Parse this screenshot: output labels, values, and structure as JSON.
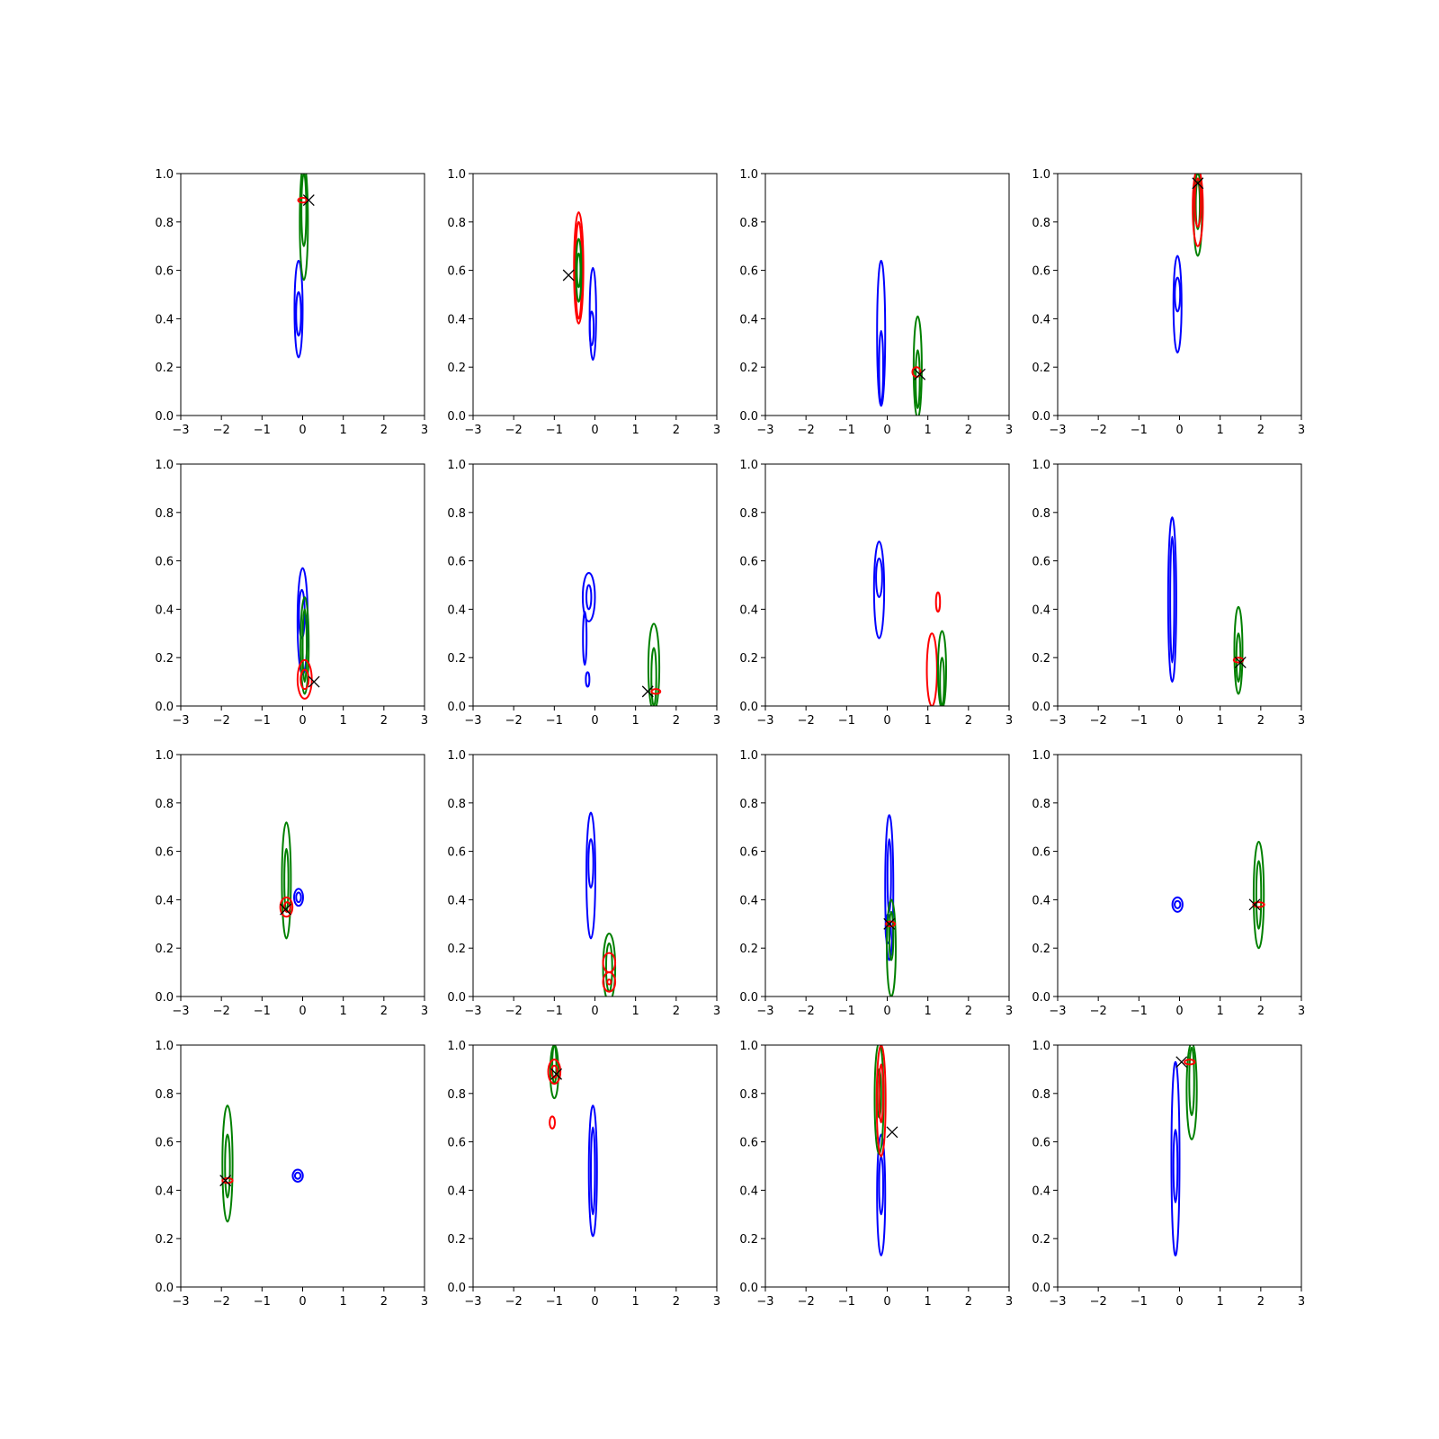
{
  "colors": {
    "blue": "#0000ff",
    "green": "#008000",
    "red": "#ff0000",
    "marker": "#000000"
  },
  "chart_data": {
    "type": "contour-grid",
    "layout": {
      "rows": 4,
      "cols": 4
    },
    "xlim": [
      -3,
      3
    ],
    "ylim": [
      0,
      1
    ],
    "xticks": [
      -3,
      -2,
      -1,
      0,
      1,
      2,
      3
    ],
    "yticks": [
      0.0,
      0.2,
      0.4,
      0.6,
      0.8,
      1.0
    ],
    "xtick_labels": [
      "−3",
      "−2",
      "−1",
      "0",
      "1",
      "2",
      "3"
    ],
    "ytick_labels": [
      "0.0",
      "0.2",
      "0.4",
      "0.6",
      "0.8",
      "1.0"
    ],
    "panels": [
      {
        "marker": [
          0.15,
          0.89
        ],
        "contours": [
          {
            "c": "blue",
            "x": -0.1,
            "y": 0.44,
            "rx": 0.2,
            "ry": 0.2
          },
          {
            "c": "blue",
            "x": -0.1,
            "y": 0.42,
            "rx": 0.12,
            "ry": 0.09
          },
          {
            "c": "green",
            "x": 0.03,
            "y": 0.8,
            "rx": 0.2,
            "ry": 0.24
          },
          {
            "c": "green",
            "x": 0.03,
            "y": 0.85,
            "rx": 0.12,
            "ry": 0.15
          },
          {
            "c": "red",
            "x": 0.0,
            "y": 0.89,
            "rx": 0.22,
            "ry": 0.01
          }
        ]
      },
      {
        "marker": [
          -0.65,
          0.58
        ],
        "contours": [
          {
            "c": "blue",
            "x": -0.05,
            "y": 0.42,
            "rx": 0.16,
            "ry": 0.19
          },
          {
            "c": "blue",
            "x": -0.08,
            "y": 0.36,
            "rx": 0.1,
            "ry": 0.07
          },
          {
            "c": "red",
            "x": -0.4,
            "y": 0.61,
            "rx": 0.23,
            "ry": 0.23
          },
          {
            "c": "red",
            "x": -0.4,
            "y": 0.6,
            "rx": 0.16,
            "ry": 0.2
          },
          {
            "c": "green",
            "x": -0.4,
            "y": 0.6,
            "rx": 0.13,
            "ry": 0.13
          },
          {
            "c": "green",
            "x": -0.4,
            "y": 0.6,
            "rx": 0.07,
            "ry": 0.07
          }
        ]
      },
      {
        "marker": [
          0.8,
          0.17
        ],
        "contours": [
          {
            "c": "blue",
            "x": -0.15,
            "y": 0.34,
            "rx": 0.2,
            "ry": 0.3
          },
          {
            "c": "blue",
            "x": -0.15,
            "y": 0.2,
            "rx": 0.1,
            "ry": 0.15
          },
          {
            "c": "green",
            "x": 0.75,
            "y": 0.2,
            "rx": 0.2,
            "ry": 0.21
          },
          {
            "c": "green",
            "x": 0.75,
            "y": 0.15,
            "rx": 0.1,
            "ry": 0.12
          },
          {
            "c": "red",
            "x": 0.72,
            "y": 0.18,
            "rx": 0.2,
            "ry": 0.02
          }
        ]
      },
      {
        "marker": [
          0.45,
          0.96
        ],
        "contours": [
          {
            "c": "blue",
            "x": -0.05,
            "y": 0.46,
            "rx": 0.2,
            "ry": 0.2
          },
          {
            "c": "blue",
            "x": -0.05,
            "y": 0.5,
            "rx": 0.13,
            "ry": 0.07
          },
          {
            "c": "green",
            "x": 0.45,
            "y": 0.83,
            "rx": 0.2,
            "ry": 0.17
          },
          {
            "c": "green",
            "x": 0.45,
            "y": 0.87,
            "rx": 0.1,
            "ry": 0.1
          },
          {
            "c": "red",
            "x": 0.45,
            "y": 0.86,
            "rx": 0.25,
            "ry": 0.16
          },
          {
            "c": "red",
            "x": 0.45,
            "y": 0.88,
            "rx": 0.15,
            "ry": 0.1
          }
        ]
      },
      {
        "marker": [
          0.28,
          0.1
        ],
        "contours": [
          {
            "c": "blue",
            "x": 0.0,
            "y": 0.35,
            "rx": 0.25,
            "ry": 0.22
          },
          {
            "c": "blue",
            "x": -0.02,
            "y": 0.38,
            "rx": 0.14,
            "ry": 0.1
          },
          {
            "c": "green",
            "x": 0.05,
            "y": 0.25,
            "rx": 0.2,
            "ry": 0.2
          },
          {
            "c": "green",
            "x": 0.05,
            "y": 0.25,
            "rx": 0.1,
            "ry": 0.15
          },
          {
            "c": "red",
            "x": 0.05,
            "y": 0.11,
            "rx": 0.35,
            "ry": 0.08
          },
          {
            "c": "red",
            "x": 0.05,
            "y": 0.11,
            "rx": 0.2,
            "ry": 0.04
          }
        ]
      },
      {
        "marker": [
          1.3,
          0.06
        ],
        "contours": [
          {
            "c": "blue",
            "x": -0.15,
            "y": 0.45,
            "rx": 0.3,
            "ry": 0.1
          },
          {
            "c": "blue",
            "x": -0.15,
            "y": 0.45,
            "rx": 0.12,
            "ry": 0.05
          },
          {
            "c": "blue",
            "x": -0.25,
            "y": 0.28,
            "rx": 0.05,
            "ry": 0.11
          },
          {
            "c": "blue",
            "x": -0.18,
            "y": 0.11,
            "rx": 0.04,
            "ry": 0.03
          },
          {
            "c": "green",
            "x": 1.45,
            "y": 0.16,
            "rx": 0.27,
            "ry": 0.18
          },
          {
            "c": "green",
            "x": 1.45,
            "y": 0.12,
            "rx": 0.12,
            "ry": 0.12
          },
          {
            "c": "red",
            "x": 1.5,
            "y": 0.06,
            "rx": 0.22,
            "ry": 0.01
          }
        ]
      },
      {
        "marker": null,
        "contours": [
          {
            "c": "blue",
            "x": -0.2,
            "y": 0.48,
            "rx": 0.25,
            "ry": 0.2
          },
          {
            "c": "blue",
            "x": -0.2,
            "y": 0.53,
            "rx": 0.15,
            "ry": 0.08
          },
          {
            "c": "red",
            "x": 1.25,
            "y": 0.43,
            "rx": 0.1,
            "ry": 0.04
          },
          {
            "c": "red",
            "x": 1.1,
            "y": 0.15,
            "rx": 0.25,
            "ry": 0.15
          },
          {
            "c": "green",
            "x": 1.35,
            "y": 0.15,
            "rx": 0.2,
            "ry": 0.16
          },
          {
            "c": "green",
            "x": 1.35,
            "y": 0.1,
            "rx": 0.1,
            "ry": 0.1
          }
        ]
      },
      {
        "marker": [
          1.5,
          0.18
        ],
        "contours": [
          {
            "c": "blue",
            "x": -0.18,
            "y": 0.44,
            "rx": 0.2,
            "ry": 0.34
          },
          {
            "c": "blue",
            "x": -0.18,
            "y": 0.44,
            "rx": 0.1,
            "ry": 0.26
          },
          {
            "c": "green",
            "x": 1.45,
            "y": 0.23,
            "rx": 0.2,
            "ry": 0.18
          },
          {
            "c": "green",
            "x": 1.45,
            "y": 0.2,
            "rx": 0.1,
            "ry": 0.1
          },
          {
            "c": "red",
            "x": 1.45,
            "y": 0.19,
            "rx": 0.23,
            "ry": 0.01
          }
        ]
      },
      {
        "marker": [
          -0.42,
          0.36
        ],
        "contours": [
          {
            "c": "blue",
            "x": -0.1,
            "y": 0.41,
            "rx": 0.22,
            "ry": 0.035
          },
          {
            "c": "blue",
            "x": -0.1,
            "y": 0.41,
            "rx": 0.12,
            "ry": 0.02
          },
          {
            "c": "green",
            "x": -0.4,
            "y": 0.48,
            "rx": 0.22,
            "ry": 0.24
          },
          {
            "c": "green",
            "x": -0.4,
            "y": 0.48,
            "rx": 0.1,
            "ry": 0.13
          },
          {
            "c": "red",
            "x": -0.4,
            "y": 0.37,
            "rx": 0.3,
            "ry": 0.04
          },
          {
            "c": "red",
            "x": -0.38,
            "y": 0.37,
            "rx": 0.15,
            "ry": 0.02
          }
        ]
      },
      {
        "marker": null,
        "contours": [
          {
            "c": "blue",
            "x": -0.1,
            "y": 0.5,
            "rx": 0.22,
            "ry": 0.26
          },
          {
            "c": "blue",
            "x": -0.1,
            "y": 0.55,
            "rx": 0.12,
            "ry": 0.1
          },
          {
            "c": "green",
            "x": 0.35,
            "y": 0.12,
            "rx": 0.3,
            "ry": 0.14
          },
          {
            "c": "green",
            "x": 0.35,
            "y": 0.12,
            "rx": 0.15,
            "ry": 0.1
          },
          {
            "c": "red",
            "x": 0.35,
            "y": 0.14,
            "rx": 0.3,
            "ry": 0.04
          },
          {
            "c": "red",
            "x": 0.35,
            "y": 0.06,
            "rx": 0.3,
            "ry": 0.04
          },
          {
            "c": "red",
            "x": 0.35,
            "y": 0.06,
            "rx": 0.05,
            "ry": 0.01
          }
        ]
      },
      {
        "marker": [
          0.05,
          0.3
        ],
        "contours": [
          {
            "c": "blue",
            "x": 0.05,
            "y": 0.45,
            "rx": 0.2,
            "ry": 0.3
          },
          {
            "c": "blue",
            "x": 0.05,
            "y": 0.5,
            "rx": 0.08,
            "ry": 0.15
          },
          {
            "c": "blue",
            "x": 0.02,
            "y": 0.28,
            "rx": 0.12,
            "ry": 0.06
          },
          {
            "c": "green",
            "x": 0.1,
            "y": 0.2,
            "rx": 0.22,
            "ry": 0.2
          },
          {
            "c": "green",
            "x": 0.1,
            "y": 0.25,
            "rx": 0.1,
            "ry": 0.1
          },
          {
            "c": "red",
            "x": 0.08,
            "y": 0.3,
            "rx": 0.22,
            "ry": 0.01
          }
        ]
      },
      {
        "marker": [
          1.85,
          0.38
        ],
        "contours": [
          {
            "c": "blue",
            "x": -0.05,
            "y": 0.38,
            "rx": 0.25,
            "ry": 0.03
          },
          {
            "c": "blue",
            "x": -0.05,
            "y": 0.38,
            "rx": 0.14,
            "ry": 0.015
          },
          {
            "c": "green",
            "x": 1.95,
            "y": 0.42,
            "rx": 0.25,
            "ry": 0.22
          },
          {
            "c": "green",
            "x": 1.95,
            "y": 0.42,
            "rx": 0.12,
            "ry": 0.14
          },
          {
            "c": "red",
            "x": 1.95,
            "y": 0.38,
            "rx": 0.27,
            "ry": 0.01
          }
        ]
      },
      {
        "marker": [
          -1.9,
          0.44
        ],
        "contours": [
          {
            "c": "blue",
            "x": -0.12,
            "y": 0.46,
            "rx": 0.25,
            "ry": 0.025
          },
          {
            "c": "blue",
            "x": -0.12,
            "y": 0.46,
            "rx": 0.14,
            "ry": 0.013
          },
          {
            "c": "green",
            "x": -1.85,
            "y": 0.51,
            "rx": 0.25,
            "ry": 0.24
          },
          {
            "c": "green",
            "x": -1.85,
            "y": 0.5,
            "rx": 0.12,
            "ry": 0.13
          },
          {
            "c": "red",
            "x": -1.85,
            "y": 0.44,
            "rx": 0.25,
            "ry": 0.01
          }
        ]
      },
      {
        "marker": [
          -0.95,
          0.88
        ],
        "contours": [
          {
            "c": "blue",
            "x": -0.05,
            "y": 0.48,
            "rx": 0.2,
            "ry": 0.27
          },
          {
            "c": "blue",
            "x": -0.05,
            "y": 0.48,
            "rx": 0.1,
            "ry": 0.18
          },
          {
            "c": "green",
            "x": -1.0,
            "y": 0.89,
            "rx": 0.2,
            "ry": 0.11
          },
          {
            "c": "green",
            "x": -1.0,
            "y": 0.92,
            "rx": 0.1,
            "ry": 0.08
          },
          {
            "c": "red",
            "x": -1.0,
            "y": 0.89,
            "rx": 0.3,
            "ry": 0.05
          },
          {
            "c": "red",
            "x": -1.0,
            "y": 0.89,
            "rx": 0.15,
            "ry": 0.025
          },
          {
            "c": "red",
            "x": -1.05,
            "y": 0.68,
            "rx": 0.13,
            "ry": 0.025
          }
        ]
      },
      {
        "marker": [
          0.12,
          0.64
        ],
        "contours": [
          {
            "c": "blue",
            "x": -0.15,
            "y": 0.38,
            "rx": 0.2,
            "ry": 0.25
          },
          {
            "c": "blue",
            "x": -0.15,
            "y": 0.42,
            "rx": 0.1,
            "ry": 0.12
          },
          {
            "c": "green",
            "x": -0.2,
            "y": 0.78,
            "rx": 0.22,
            "ry": 0.23
          },
          {
            "c": "green",
            "x": -0.2,
            "y": 0.8,
            "rx": 0.1,
            "ry": 0.1
          },
          {
            "c": "red",
            "x": -0.15,
            "y": 0.77,
            "rx": 0.22,
            "ry": 0.23
          },
          {
            "c": "red",
            "x": -0.15,
            "y": 0.8,
            "rx": 0.1,
            "ry": 0.12
          }
        ]
      },
      {
        "marker": [
          0.05,
          0.93
        ],
        "contours": [
          {
            "c": "blue",
            "x": -0.1,
            "y": 0.53,
            "rx": 0.2,
            "ry": 0.4
          },
          {
            "c": "blue",
            "x": -0.1,
            "y": 0.5,
            "rx": 0.1,
            "ry": 0.15
          },
          {
            "c": "green",
            "x": 0.3,
            "y": 0.81,
            "rx": 0.25,
            "ry": 0.2
          },
          {
            "c": "green",
            "x": 0.3,
            "y": 0.85,
            "rx": 0.12,
            "ry": 0.14
          },
          {
            "c": "red",
            "x": 0.25,
            "y": 0.93,
            "rx": 0.25,
            "ry": 0.01
          }
        ]
      }
    ]
  }
}
